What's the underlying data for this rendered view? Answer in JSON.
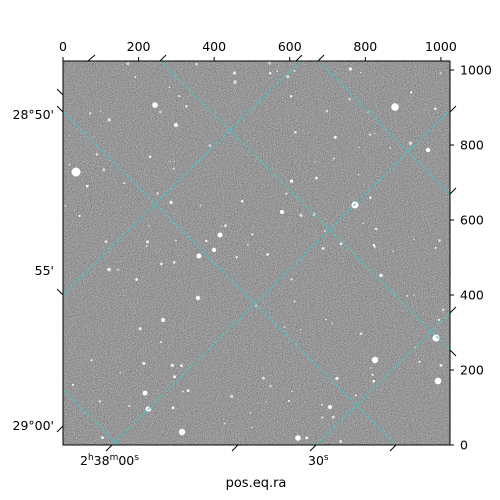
{
  "figure": {
    "xlabel": "pos.eq.ra",
    "pixel_axis": {
      "top_ticks": [
        "0",
        "200",
        "400",
        "600",
        "800",
        "1000"
      ],
      "right_ticks": [
        "0",
        "200",
        "400",
        "600",
        "800",
        "1000"
      ],
      "range": [
        0,
        1024
      ]
    },
    "ra_ticks": [
      {
        "h": "2",
        "hsup": "h",
        "m": "38",
        "msup": "m",
        "s": "00",
        "ssup": "s"
      },
      {
        "s": "30",
        "ssup": "s"
      }
    ],
    "dec_ticks": [
      "28°50'",
      "55'",
      "29°00'"
    ],
    "grid_color": "#40c8c8",
    "image_kind": "grayscale star field"
  }
}
